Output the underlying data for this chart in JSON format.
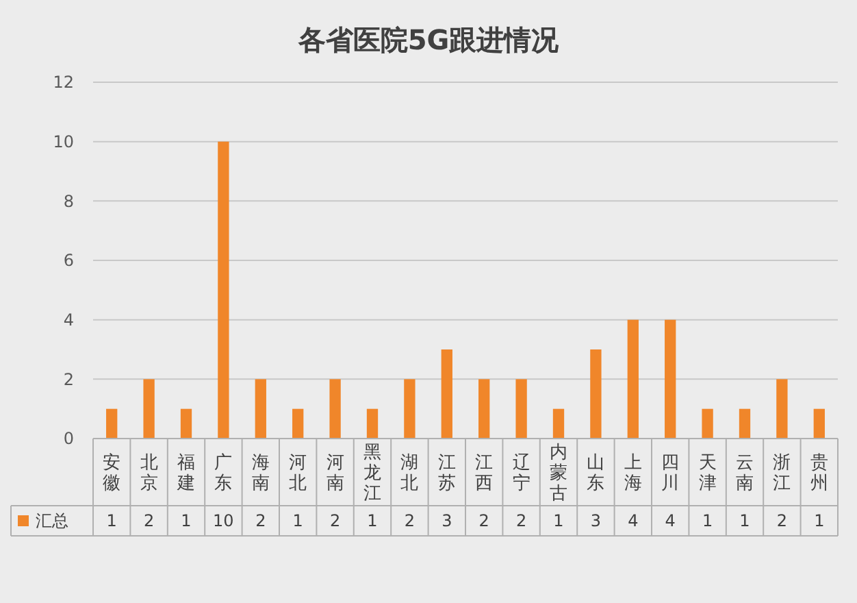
{
  "chart_data": {
    "type": "bar",
    "title": "各省医院5G跟进情况",
    "categories": [
      "安徽",
      "北京",
      "福建",
      "广东",
      "海南",
      "河北",
      "河南",
      "黑龙江",
      "湖北",
      "江苏",
      "江西",
      "辽宁",
      "内蒙古",
      "山东",
      "上海",
      "四川",
      "天津",
      "云南",
      "浙江",
      "贵州"
    ],
    "series": [
      {
        "name": "汇总",
        "color": "#f0862a",
        "values": [
          1,
          2,
          1,
          10,
          2,
          1,
          2,
          1,
          2,
          3,
          2,
          2,
          1,
          3,
          4,
          4,
          1,
          1,
          2,
          1
        ]
      }
    ],
    "ylim": [
      0,
      12
    ],
    "yticks": [
      0,
      2,
      4,
      6,
      8,
      10,
      12
    ],
    "grid": "y",
    "legend": "bottom left",
    "data_labels": true
  }
}
